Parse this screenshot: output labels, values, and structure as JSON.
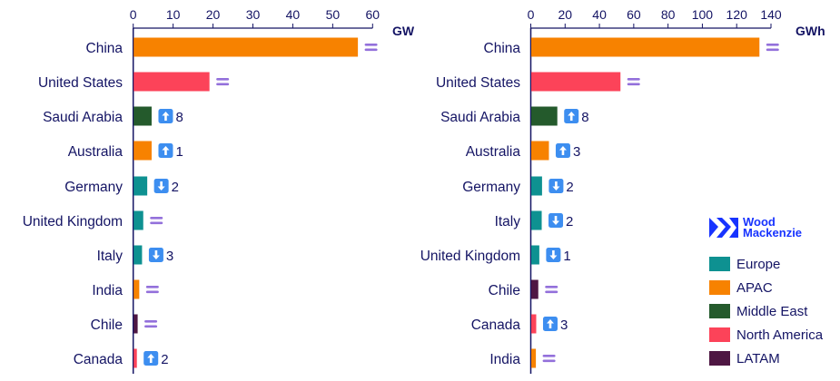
{
  "chart_data": [
    {
      "type": "bar",
      "orientation": "horizontal",
      "unit": "GW",
      "xlim": [
        0,
        60
      ],
      "ticks": [
        0,
        10,
        20,
        30,
        40,
        50,
        60
      ],
      "categories": [
        "China",
        "United States",
        "Saudi Arabia",
        "Australia",
        "Germany",
        "United Kingdom",
        "Italy",
        "India",
        "Chile",
        "Canada"
      ],
      "values": [
        56.2,
        19.0,
        4.5,
        4.5,
        3.4,
        2.4,
        2.1,
        1.4,
        1.0,
        0.8
      ],
      "regions": [
        "APAC",
        "North America",
        "Middle East",
        "APAC",
        "Europe",
        "Europe",
        "Europe",
        "APAC",
        "LATAM",
        "North America"
      ],
      "rank_change": [
        {
          "dir": "same",
          "value": ""
        },
        {
          "dir": "same",
          "value": ""
        },
        {
          "dir": "up",
          "value": "8"
        },
        {
          "dir": "up",
          "value": "1"
        },
        {
          "dir": "down",
          "value": "2"
        },
        {
          "dir": "same",
          "value": ""
        },
        {
          "dir": "down",
          "value": "3"
        },
        {
          "dir": "same",
          "value": ""
        },
        {
          "dir": "same",
          "value": ""
        },
        {
          "dir": "up",
          "value": "2"
        }
      ]
    },
    {
      "type": "bar",
      "orientation": "horizontal",
      "unit": "GWh",
      "xlim": [
        0,
        140
      ],
      "ticks": [
        0,
        20,
        40,
        60,
        80,
        100,
        120,
        140
      ],
      "categories": [
        "China",
        "United States",
        "Saudi Arabia",
        "Australia",
        "Germany",
        "Italy",
        "United Kingdom",
        "Chile",
        "Canada",
        "India"
      ],
      "values": [
        133,
        52,
        15.2,
        10.3,
        6.3,
        6.1,
        4.7,
        4.1,
        2.9,
        2.7
      ],
      "regions": [
        "APAC",
        "North America",
        "Middle East",
        "APAC",
        "Europe",
        "Europe",
        "Europe",
        "LATAM",
        "North America",
        "APAC"
      ],
      "rank_change": [
        {
          "dir": "same",
          "value": ""
        },
        {
          "dir": "same",
          "value": ""
        },
        {
          "dir": "up",
          "value": "8"
        },
        {
          "dir": "up",
          "value": "3"
        },
        {
          "dir": "down",
          "value": "2"
        },
        {
          "dir": "down",
          "value": "2"
        },
        {
          "dir": "down",
          "value": "1"
        },
        {
          "dir": "same",
          "value": ""
        },
        {
          "dir": "up",
          "value": "3"
        },
        {
          "dir": "same",
          "value": ""
        }
      ]
    }
  ],
  "legend": [
    {
      "label": "Europe",
      "color": "#0e9191"
    },
    {
      "label": "APAC",
      "color": "#f78200"
    },
    {
      "label": "Middle East",
      "color": "#245a2c"
    },
    {
      "label": "North America",
      "color": "#fc4359"
    },
    {
      "label": "LATAM",
      "color": "#4e1743"
    }
  ],
  "logo": {
    "line1": "Wood",
    "line2": "Mackenzie"
  },
  "colors": {
    "axis": "#141464",
    "same": "#9370db",
    "badge": "#3d8ef0"
  }
}
